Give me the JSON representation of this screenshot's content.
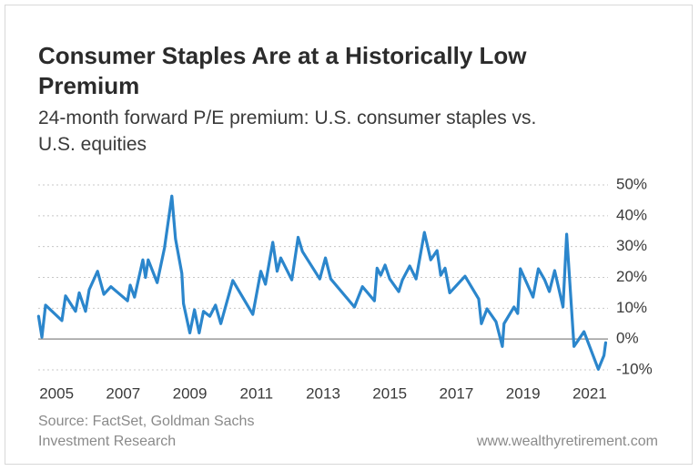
{
  "chart_data": {
    "type": "line",
    "title": "Consumer Staples Are at a Historically Low Premium",
    "subtitle": "24-month forward P/E premium: U.S. consumer staples vs. U.S. equities",
    "source": "Source: FactSet, Goldman Sachs Investment Research",
    "credit": "www.wealthyretirement.com",
    "color": "#2b86cc",
    "grid": true,
    "xlim": [
      2004.45,
      2021.55
    ],
    "xticks": [
      2005,
      2007,
      2009,
      2011,
      2013,
      2015,
      2017,
      2019,
      2021
    ],
    "ylim": [
      -10,
      50
    ],
    "yticks": [
      {
        "value": 50,
        "label": "50%"
      },
      {
        "value": 40,
        "label": "40%"
      },
      {
        "value": 30,
        "label": "30%"
      },
      {
        "value": 20,
        "label": "20%"
      },
      {
        "value": 10,
        "label": "10%"
      },
      {
        "value": 0,
        "label": "0%"
      },
      {
        "value": -10,
        "label": "-10%"
      }
    ],
    "x": [
      2004.46,
      2004.56,
      2004.67,
      2005.16,
      2005.27,
      2005.57,
      2005.68,
      2005.87,
      2005.98,
      2006.23,
      2006.42,
      2006.63,
      2007.13,
      2007.21,
      2007.34,
      2007.59,
      2007.67,
      2007.75,
      2008.02,
      2008.24,
      2008.46,
      2008.57,
      2008.76,
      2008.81,
      2009.0,
      2009.14,
      2009.28,
      2009.41,
      2009.6,
      2009.77,
      2009.93,
      2010.29,
      2010.89,
      2011.13,
      2011.27,
      2011.49,
      2011.62,
      2011.73,
      2012.06,
      2012.25,
      2012.38,
      2012.9,
      2013.07,
      2013.23,
      2013.94,
      2014.18,
      2014.54,
      2014.62,
      2014.73,
      2014.86,
      2015.0,
      2015.27,
      2015.38,
      2015.6,
      2015.79,
      2016.04,
      2016.23,
      2016.42,
      2016.53,
      2016.66,
      2016.8,
      2017.26,
      2017.67,
      2017.75,
      2017.92,
      2018.19,
      2018.38,
      2018.43,
      2018.73,
      2018.84,
      2018.92,
      2019.3,
      2019.46,
      2019.65,
      2019.79,
      2019.95,
      2020.2,
      2020.31,
      2020.53,
      2020.83,
      2021.26,
      2021.43,
      2021.48
    ],
    "values": [
      7.4,
      0.6,
      11,
      6,
      14,
      9,
      15,
      9,
      16,
      22,
      14.5,
      17,
      12.4,
      17.5,
      13.6,
      25.7,
      20,
      25.7,
      18.3,
      29.6,
      46.4,
      32.5,
      21.3,
      11.5,
      2,
      9.5,
      2,
      9,
      7.4,
      11,
      5,
      19,
      8,
      22,
      17.8,
      31.4,
      22,
      26.3,
      19.2,
      33,
      28.4,
      19.5,
      26.3,
      19.5,
      10.4,
      17,
      12.4,
      23,
      20.7,
      24,
      19.5,
      15.4,
      19.2,
      23.7,
      19.5,
      34.6,
      25.7,
      28.7,
      20.7,
      23,
      15,
      20.4,
      13,
      5,
      9.8,
      5.6,
      -2.4,
      5,
      10.4,
      8.3,
      22.8,
      13.6,
      22.8,
      19.2,
      15.4,
      22.2,
      10.4,
      34,
      -2.4,
      2.4,
      -9.8,
      -5.3,
      -1.2
    ]
  }
}
